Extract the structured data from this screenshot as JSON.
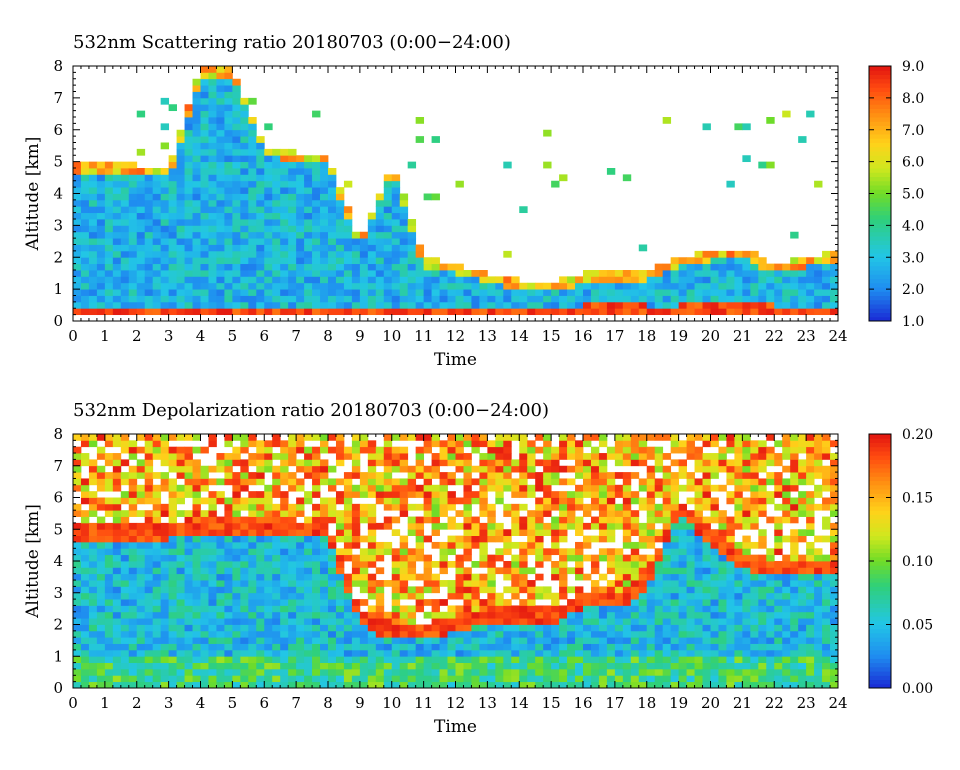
{
  "chart_data": [
    {
      "type": "heatmap",
      "title": "532nm Scattering ratio  20180703 (0:00−24:00)",
      "xlabel": "Time",
      "ylabel": "Altitude [km]",
      "xlim": [
        0,
        24
      ],
      "ylim": [
        0,
        8
      ],
      "x_ticks": [
        "0",
        "1",
        "2",
        "3",
        "4",
        "5",
        "6",
        "7",
        "8",
        "9",
        "10",
        "11",
        "12",
        "13",
        "14",
        "15",
        "16",
        "17",
        "18",
        "19",
        "20",
        "21",
        "22",
        "23",
        "24"
      ],
      "y_ticks": [
        "0",
        "1",
        "2",
        "3",
        "4",
        "5",
        "6",
        "7",
        "8"
      ],
      "colorbar": {
        "range": [
          1.0,
          9.0
        ],
        "ticks": [
          "1.0",
          "2.0",
          "3.0",
          "4.0",
          "5.0",
          "6.0",
          "7.0",
          "8.0",
          "9.0"
        ]
      },
      "cloud_top_km": [
        5.0,
        4.9,
        4.9,
        4.8,
        8.0,
        8.0,
        5.5,
        5.3,
        5.2,
        2.5,
        5.0,
        2.0,
        1.8,
        1.5,
        1.3,
        1.2,
        1.5,
        1.5,
        1.6,
        2.0,
        2.2,
        2.3,
        1.8,
        2.0,
        2.2
      ],
      "boundary_layer_km": [
        0.5,
        0.5,
        0.5,
        0.5,
        0.5,
        0.5,
        0.5,
        0.5,
        0.5,
        0.4,
        0.4,
        0.4,
        0.4,
        0.4,
        0.4,
        0.4,
        0.5,
        0.6,
        0.5,
        0.5,
        0.6,
        0.6,
        0.5,
        0.5,
        0.5
      ]
    },
    {
      "type": "heatmap",
      "title": "532nm Depolarization ratio  20180703 (0:00−24:00)",
      "xlabel": "Time",
      "ylabel": "Altitude [km]",
      "xlim": [
        0,
        24
      ],
      "ylim": [
        0,
        8
      ],
      "x_ticks": [
        "0",
        "1",
        "2",
        "3",
        "4",
        "5",
        "6",
        "7",
        "8",
        "9",
        "10",
        "11",
        "12",
        "13",
        "14",
        "15",
        "16",
        "17",
        "18",
        "19",
        "20",
        "21",
        "22",
        "23",
        "24"
      ],
      "y_ticks": [
        "0",
        "1",
        "2",
        "3",
        "4",
        "5",
        "6",
        "7",
        "8"
      ],
      "colorbar": {
        "range": [
          0.0,
          0.2
        ],
        "ticks": [
          "0.00",
          "0.05",
          "0.10",
          "0.15",
          "0.20"
        ]
      },
      "cloud_top_km": [
        4.6,
        4.6,
        4.6,
        4.7,
        4.8,
        4.8,
        4.8,
        4.8,
        4.7,
        2.0,
        1.5,
        1.5,
        1.8,
        2.0,
        2.0,
        2.0,
        2.5,
        2.5,
        3.0,
        5.5,
        4.5,
        3.8,
        3.5,
        3.5,
        3.5
      ]
    }
  ]
}
